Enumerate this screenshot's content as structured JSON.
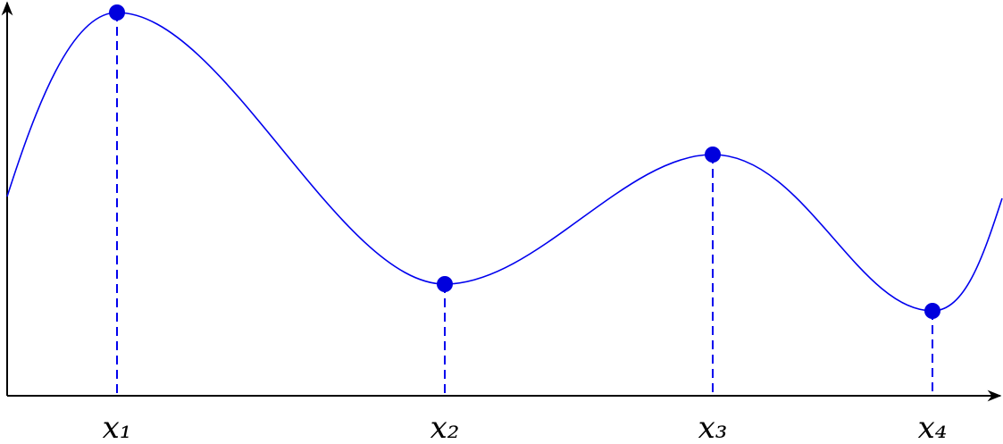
{
  "points": [
    {
      "label": "x₁"
    },
    {
      "label": "x₂"
    },
    {
      "label": "x₃"
    },
    {
      "label": "x₄"
    }
  ]
}
